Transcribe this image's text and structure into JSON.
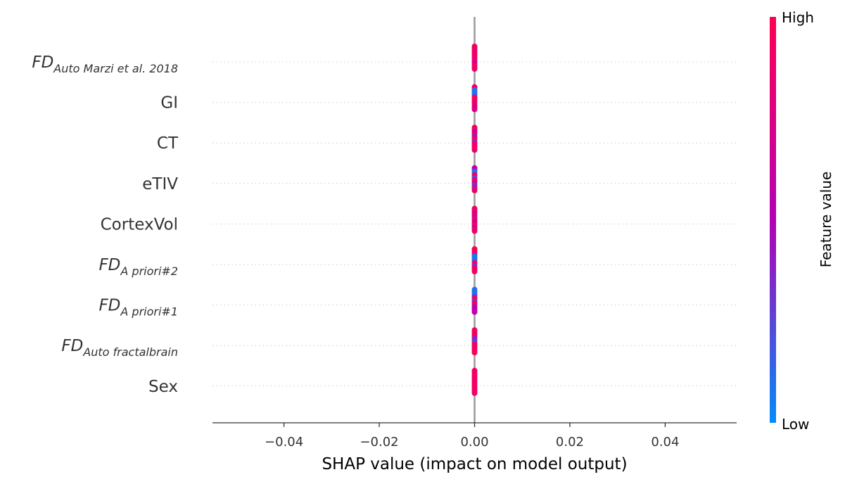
{
  "chart_data": {
    "type": "scatter",
    "subtype": "shap-beeswarm",
    "xlabel": "SHAP value (impact on model output)",
    "xlim": [
      -0.055,
      0.055
    ],
    "xticks": [
      -0.04,
      -0.02,
      0.0,
      0.02,
      0.04
    ],
    "xtick_labels": [
      "−0.04",
      "−0.02",
      "0.00",
      "0.02",
      "0.04"
    ],
    "features": [
      {
        "base": "FD",
        "sub": "Auto Marzi et al. 2018",
        "italic": true
      },
      {
        "base": "GI",
        "sub": "",
        "italic": false
      },
      {
        "base": "CT",
        "sub": "",
        "italic": false
      },
      {
        "base": "eTIV",
        "sub": "",
        "italic": false
      },
      {
        "base": "CortexVol",
        "sub": "",
        "italic": false
      },
      {
        "base": "FD",
        "sub": "A priori#2",
        "italic": true
      },
      {
        "base": "FD",
        "sub": "A priori#1",
        "italic": true
      },
      {
        "base": "FD",
        "sub": "Auto fractalbrain",
        "italic": true
      },
      {
        "base": "Sex",
        "sub": "",
        "italic": false
      }
    ],
    "shap_values_all_zero": true,
    "colorbar": {
      "label": "Feature value",
      "high_label": "High",
      "low_label": "Low",
      "high_color": "#ff0052",
      "mid_color": "#b400b4",
      "low_color": "#008bfb"
    },
    "point_feature_values": [
      [
        0.95,
        0.9,
        0.85,
        0.92,
        0.88,
        0.97,
        0.8,
        0.93,
        0.9,
        0.86,
        0.6,
        0.94,
        0.91,
        0.89
      ],
      [
        0.9,
        0.88,
        0.05,
        0.1,
        0.08,
        0.12,
        0.93,
        0.95,
        0.9,
        0.85,
        0.87,
        0.92,
        0.6,
        0.8
      ],
      [
        0.92,
        0.95,
        0.9,
        0.5,
        0.88,
        0.4,
        0.93,
        0.9,
        0.3,
        0.91,
        0.86,
        0.94,
        0.9,
        0.89
      ],
      [
        0.6,
        0.55,
        0.1,
        0.08,
        0.9,
        0.93,
        0.2,
        0.88,
        0.95,
        0.45,
        0.3,
        0.92,
        0.35,
        0.9
      ],
      [
        0.95,
        0.9,
        0.88,
        0.7,
        0.92,
        0.45,
        0.93,
        0.9,
        0.55,
        0.91,
        0.94,
        0.6,
        0.89,
        0.9
      ],
      [
        0.95,
        0.92,
        0.9,
        0.88,
        0.1,
        0.05,
        0.08,
        0.12,
        0.93,
        0.91,
        0.3,
        0.9,
        0.88,
        0.94
      ],
      [
        0.08,
        0.1,
        0.12,
        0.05,
        0.3,
        0.92,
        0.9,
        0.25,
        0.88,
        0.93,
        0.45,
        0.55,
        0.5,
        0.6
      ],
      [
        0.95,
        0.93,
        0.9,
        0.92,
        0.88,
        0.35,
        0.4,
        0.2,
        0.91,
        0.9,
        0.94,
        0.89,
        0.92,
        0.95
      ],
      [
        0.95,
        0.93,
        0.92,
        0.9,
        0.94,
        0.91,
        0.88,
        0.95,
        0.9,
        0.93,
        0.92,
        0.89,
        0.94,
        0.91
      ]
    ]
  }
}
